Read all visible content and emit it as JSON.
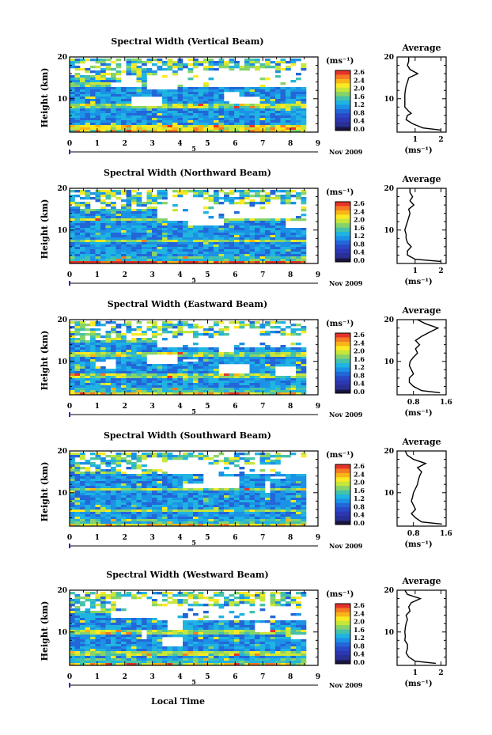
{
  "figure": {
    "xlabel": "Local Time",
    "date_label": "Nov 2009",
    "day_marker": "5",
    "avg_title": "Average"
  },
  "colorbar": {
    "unit": "(ms⁻¹)",
    "ticks": [
      "2.6",
      "2.4",
      "2.0",
      "1.6",
      "1.2",
      "0.8",
      "0.4",
      "0.0"
    ],
    "colors": [
      "#e6332a",
      "#f47a24",
      "#f8b418",
      "#fbe923",
      "#c7e63a",
      "#86d36a",
      "#45c2a9",
      "#1fb4e1",
      "#1b92e6",
      "#2366d8",
      "#2948c6",
      "#2c37b2",
      "#283096",
      "#1f2470"
    ]
  },
  "chart_data": [
    {
      "type": "heatmap",
      "title": "Spectral Width (Vertical Beam)",
      "ylabel": "Height (km)",
      "xlim": [
        0,
        9
      ],
      "ylim": [
        2,
        20
      ],
      "xticks": [
        "0",
        "1",
        "2",
        "3",
        "4",
        "5",
        "6",
        "7",
        "8",
        "9"
      ],
      "yticks": [
        "10",
        "20"
      ],
      "grid": false
    },
    {
      "type": "line",
      "title": "Average",
      "xlabel": "(ms⁻¹)",
      "xlim": [
        0.3,
        2.2
      ],
      "ylim": [
        2,
        20
      ],
      "xticks": [
        "1",
        "2"
      ],
      "yticks": [
        "10",
        "20"
      ],
      "height": [
        2.5,
        3,
        4,
        5,
        6,
        6.5,
        7,
        8,
        9,
        10,
        11,
        12,
        13,
        14,
        15,
        16,
        17,
        18,
        19,
        20
      ],
      "values": [
        2.0,
        1.3,
        0.9,
        0.65,
        0.7,
        0.85,
        0.75,
        0.6,
        0.6,
        0.6,
        0.6,
        0.62,
        0.65,
        0.7,
        0.75,
        1.1,
        0.8,
        0.7,
        0.75,
        0.75
      ]
    },
    {
      "type": "heatmap",
      "title": "Spectral Width (Northward Beam)",
      "ylabel": "Height (km)",
      "xlim": [
        0,
        9
      ],
      "ylim": [
        2,
        20
      ],
      "xticks": [
        "0",
        "1",
        "2",
        "3",
        "4",
        "5",
        "6",
        "7",
        "8",
        "9"
      ],
      "yticks": [
        "10",
        "20"
      ],
      "grid": false
    },
    {
      "type": "line",
      "title": "Average",
      "xlabel": "(ms⁻¹)",
      "xlim": [
        0.3,
        2.2
      ],
      "ylim": [
        2,
        20
      ],
      "xticks": [
        "1",
        "2"
      ],
      "yticks": [
        "10",
        "20"
      ],
      "height": [
        2.5,
        3,
        4,
        5,
        6,
        7,
        8,
        9,
        10,
        11,
        12,
        13,
        14,
        15,
        16,
        17,
        18,
        19,
        20
      ],
      "values": [
        2.0,
        1.0,
        0.7,
        0.7,
        0.85,
        0.7,
        0.65,
        0.65,
        0.6,
        0.65,
        0.7,
        0.75,
        0.8,
        0.75,
        0.95,
        0.8,
        0.9,
        0.8,
        0.8
      ]
    },
    {
      "type": "heatmap",
      "title": "Spectral Width (Eastward Beam)",
      "ylabel": "Height (km)",
      "xlim": [
        0,
        9
      ],
      "ylim": [
        2,
        20
      ],
      "xticks": [
        "0",
        "1",
        "2",
        "3",
        "4",
        "5",
        "6",
        "7",
        "8",
        "9"
      ],
      "yticks": [
        "10",
        "20"
      ],
      "grid": false
    },
    {
      "type": "line",
      "title": "Average",
      "xlabel": "(ms⁻¹)",
      "xlim": [
        0.4,
        1.6
      ],
      "ylim": [
        2,
        20
      ],
      "xticks": [
        "0.8",
        "1.6"
      ],
      "yticks": [
        "10",
        "20"
      ],
      "height": [
        2.5,
        3,
        4,
        5,
        6,
        7,
        8,
        9,
        10,
        11,
        12,
        13,
        14,
        15,
        16,
        17,
        18,
        19,
        20
      ],
      "values": [
        1.45,
        1.0,
        0.8,
        0.7,
        0.7,
        0.8,
        0.75,
        0.7,
        0.72,
        0.8,
        0.9,
        0.85,
        0.95,
        0.85,
        1.0,
        1.2,
        1.4,
        1.1,
        0.9
      ]
    },
    {
      "type": "heatmap",
      "title": "Spectral Width (Southward Beam)",
      "ylabel": "Height (km)",
      "xlim": [
        0,
        9
      ],
      "ylim": [
        2,
        20
      ],
      "xticks": [
        "0",
        "1",
        "2",
        "3",
        "4",
        "5",
        "6",
        "7",
        "8",
        "9"
      ],
      "yticks": [
        "10",
        "20"
      ],
      "grid": false
    },
    {
      "type": "line",
      "title": "Average",
      "xlabel": "(ms⁻¹)",
      "xlim": [
        0.4,
        1.6
      ],
      "ylim": [
        2,
        20
      ],
      "xticks": [
        "0.8",
        "1.6"
      ],
      "yticks": [
        "10",
        "20"
      ],
      "height": [
        2.5,
        3,
        4,
        5,
        6,
        7,
        8,
        9,
        10,
        11,
        12,
        13,
        14,
        15,
        16,
        17,
        18,
        19,
        20
      ],
      "values": [
        1.5,
        1.0,
        0.85,
        0.75,
        0.85,
        0.8,
        0.75,
        0.78,
        0.8,
        0.85,
        0.9,
        0.92,
        0.95,
        1.0,
        0.9,
        1.1,
        0.8,
        0.65,
        0.6
      ]
    },
    {
      "type": "heatmap",
      "title": "Spectral Width (Westward Beam)",
      "ylabel": "Height (km)",
      "xlim": [
        0,
        9
      ],
      "ylim": [
        2,
        20
      ],
      "xticks": [
        "0",
        "1",
        "2",
        "3",
        "4",
        "5",
        "6",
        "7",
        "8",
        "9"
      ],
      "yticks": [
        "10",
        "20"
      ],
      "grid": false
    },
    {
      "type": "line",
      "title": "Average",
      "xlabel": "(ms⁻¹)",
      "xlim": [
        0.3,
        2.2
      ],
      "ylim": [
        2,
        20
      ],
      "xticks": [
        "1",
        "2"
      ],
      "yticks": [
        "10",
        "20"
      ],
      "height": [
        2.5,
        3,
        4,
        5,
        6,
        7,
        8,
        9,
        10,
        11,
        12,
        13,
        14,
        15,
        16,
        17,
        18,
        19,
        20
      ],
      "values": [
        1.8,
        1.0,
        0.75,
        0.65,
        0.7,
        0.7,
        0.6,
        0.62,
        0.6,
        0.62,
        0.65,
        0.7,
        0.65,
        0.8,
        0.75,
        0.85,
        1.2,
        0.7,
        0.6
      ]
    }
  ]
}
